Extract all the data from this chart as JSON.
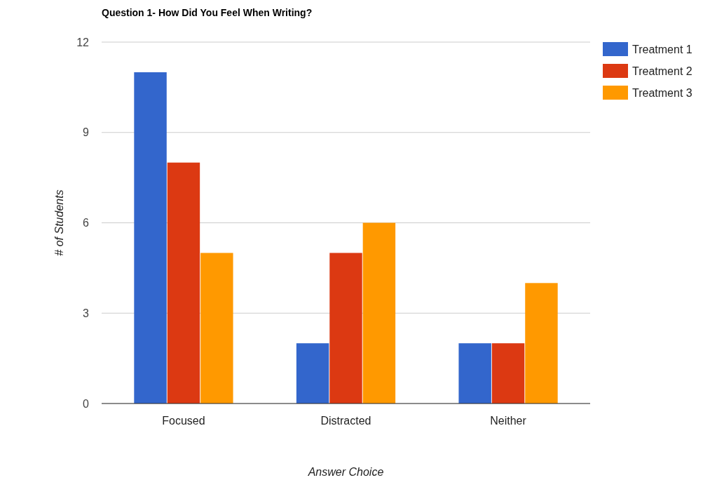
{
  "chart_data": {
    "type": "bar",
    "title": "Question 1- How Did You Feel When Writing?",
    "xlabel": "Answer Choice",
    "ylabel": "# of Students",
    "categories": [
      "Focused",
      "Distracted",
      "Neither"
    ],
    "series": [
      {
        "name": "Treatment 1",
        "color": "#3366cc",
        "values": [
          11,
          2,
          2
        ]
      },
      {
        "name": "Treatment 2",
        "color": "#dc3912",
        "values": [
          8,
          5,
          2
        ]
      },
      {
        "name": "Treatment 3",
        "color": "#ff9900",
        "values": [
          5,
          6,
          4
        ]
      }
    ],
    "ylim": [
      0,
      12
    ],
    "yticks": [
      0,
      3,
      6,
      9,
      12
    ],
    "grid": "y",
    "legend": "right"
  }
}
